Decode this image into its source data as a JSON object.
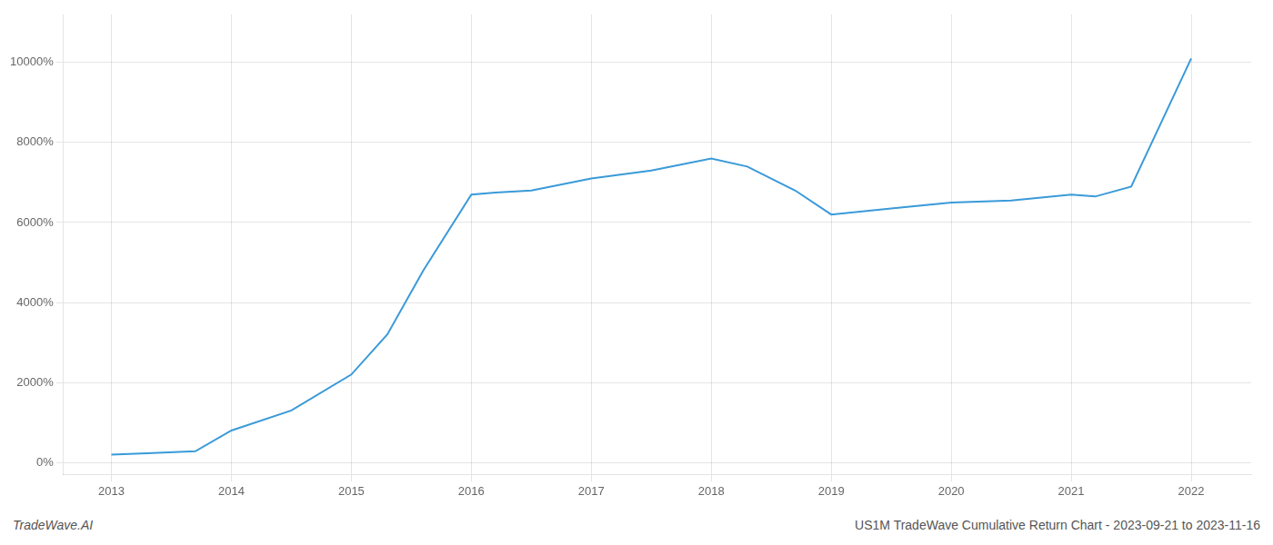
{
  "chart_data": {
    "type": "line",
    "title": "US1M TradeWave Cumulative Return Chart - 2023-09-21 to 2023-11-16",
    "annotations": [
      "TradeWave.AI"
    ],
    "x": [
      2013.0,
      2013.3,
      2013.7,
      2014.0,
      2014.5,
      2015.0,
      2015.3,
      2015.6,
      2016.0,
      2016.2,
      2016.5,
      2017.0,
      2017.5,
      2018.0,
      2018.3,
      2018.7,
      2019.0,
      2019.5,
      2020.0,
      2020.5,
      2021.0,
      2021.2,
      2021.5,
      2022.0
    ],
    "values": [
      200,
      230,
      280,
      800,
      1300,
      2200,
      3200,
      4800,
      6700,
      6750,
      6800,
      7100,
      7300,
      7600,
      7400,
      6800,
      6200,
      6350,
      6500,
      6550,
      6700,
      6650,
      6900,
      10100
    ],
    "color": "#3a9ad9",
    "xlim": [
      2012.6,
      2022.5
    ],
    "ylim": [
      -300,
      11200
    ],
    "xticks": [
      2013,
      2014,
      2015,
      2016,
      2017,
      2018,
      2019,
      2020,
      2021,
      2022
    ],
    "yticks": [
      {
        "value": 0,
        "label": "0%"
      },
      {
        "value": 2000,
        "label": "2000%"
      },
      {
        "value": 4000,
        "label": "4000%"
      },
      {
        "value": 6000,
        "label": "6000%"
      },
      {
        "value": 8000,
        "label": "8000%"
      },
      {
        "value": 10000,
        "label": "10000%"
      }
    ],
    "grid": true
  }
}
